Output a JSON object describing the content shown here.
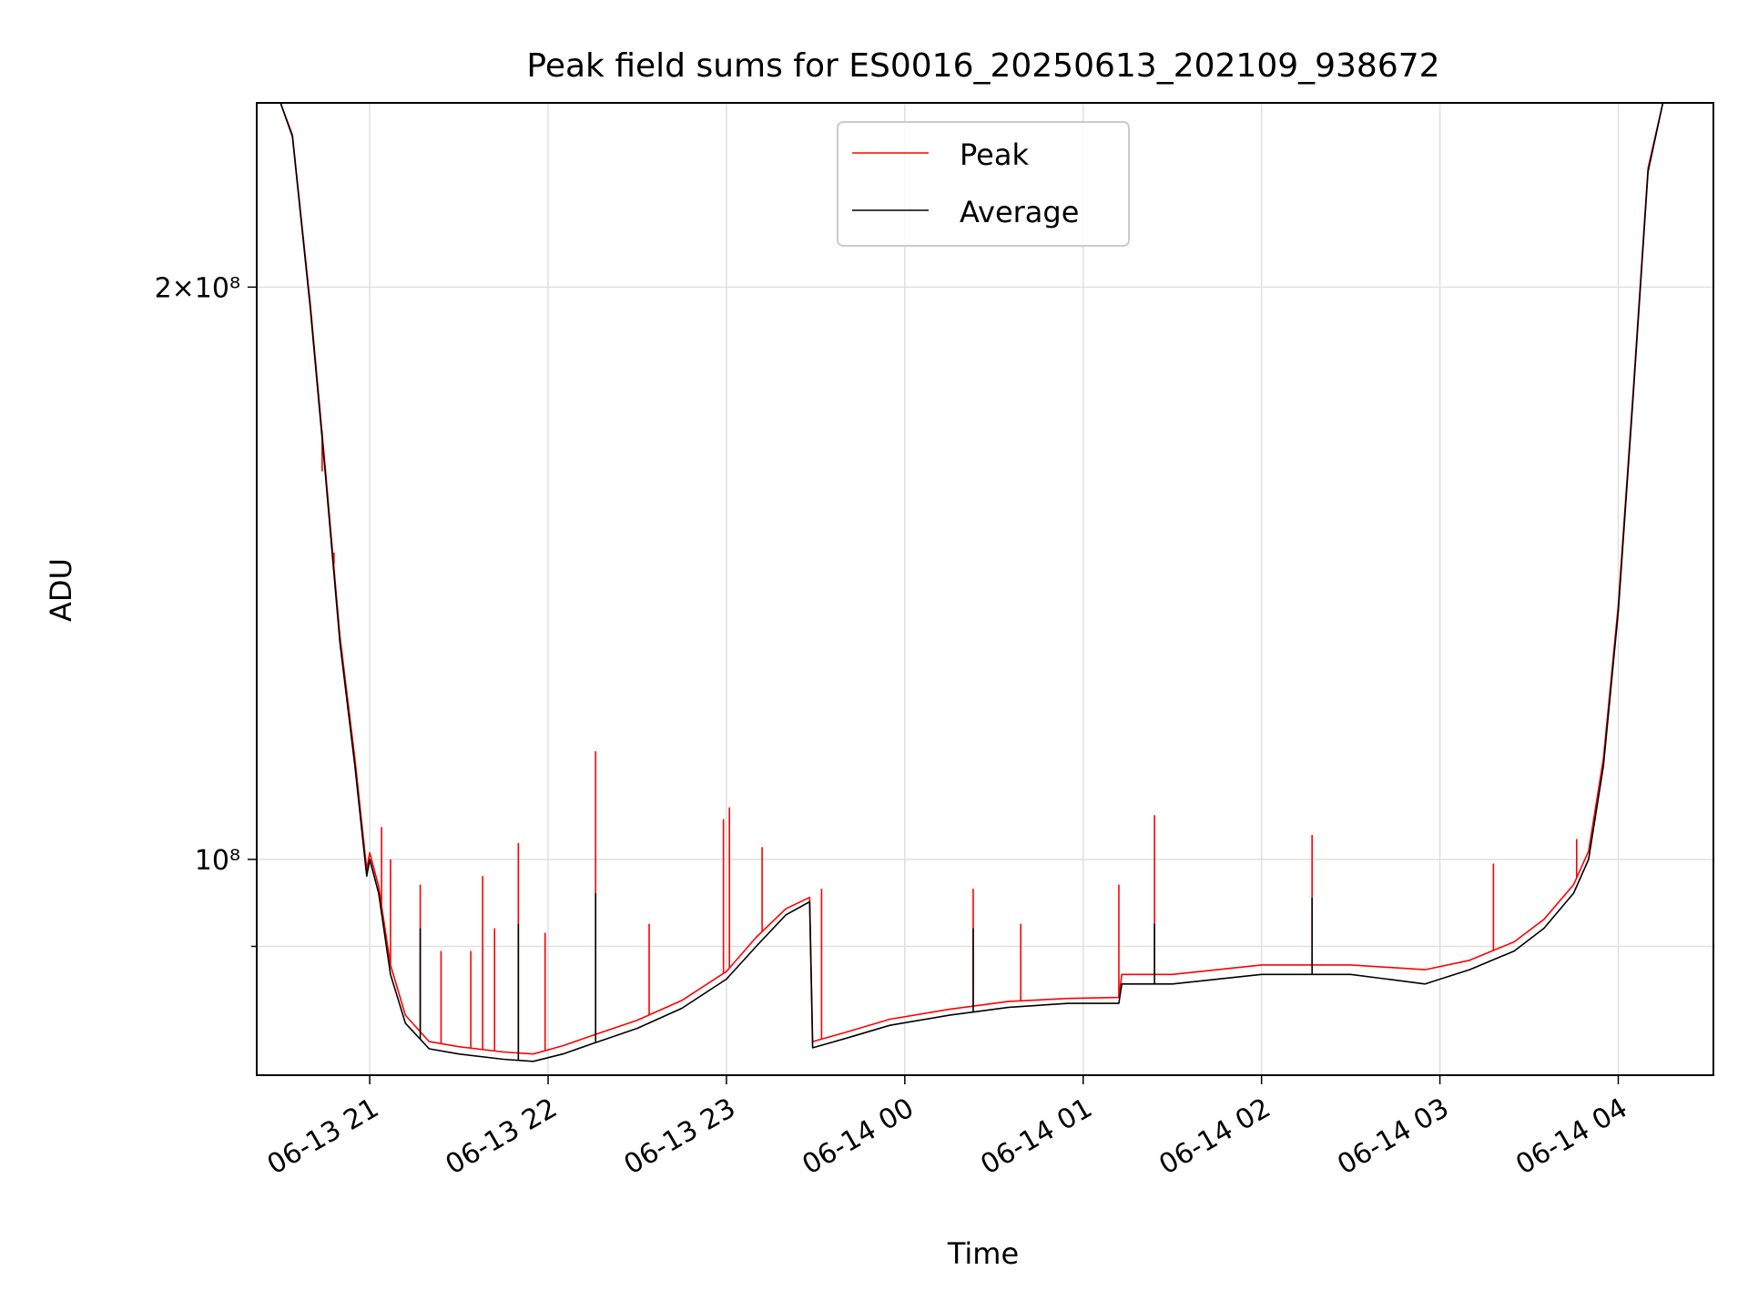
{
  "chart_data": {
    "type": "line",
    "title": "Peak field sums for ES0016_20250613_202109_938672",
    "xlabel": "Time",
    "ylabel": "ADU",
    "yscale": "log",
    "ylim": [
      77000000,
      250000000
    ],
    "xlim": [
      "2025-06-13 20:22",
      "2025-06-14 04:32"
    ],
    "grid": true,
    "legend": "upper center",
    "x_ticks": [
      "06-13 21",
      "06-13 22",
      "06-13 23",
      "06-14 00",
      "06-14 01",
      "06-14 02",
      "06-14 03",
      "06-14 04"
    ],
    "y_ticks": [
      {
        "value": 200000000,
        "label": "2×10⁸",
        "major": true
      },
      {
        "value": 100000000,
        "label": "10⁸",
        "major": true
      },
      {
        "value": 90000000,
        "label": "",
        "major": false
      }
    ],
    "colors": {
      "peak": "#ff0000",
      "average": "#000000"
    },
    "series": [
      {
        "name": "Average",
        "color": "#000000",
        "points": [
          [
            "2025-06-13 20:22",
            250000000
          ],
          [
            "2025-06-13 20:30",
            250000000
          ],
          [
            "2025-06-13 20:34",
            240000000
          ],
          [
            "2025-06-13 20:40",
            195000000
          ],
          [
            "2025-06-13 20:45",
            160000000
          ],
          [
            "2025-06-13 20:50",
            130000000
          ],
          [
            "2025-06-13 20:55",
            112000000
          ],
          [
            "2025-06-13 20:59",
            98000000
          ],
          [
            "2025-06-13 21:00",
            100000000
          ],
          [
            "2025-06-13 21:03",
            96000000
          ],
          [
            "2025-06-13 21:07",
            87000000
          ],
          [
            "2025-06-13 21:12",
            82000000
          ],
          [
            "2025-06-13 21:20",
            79500000
          ],
          [
            "2025-06-13 21:30",
            79000000
          ],
          [
            "2025-06-13 21:45",
            78500000
          ],
          [
            "2025-06-13 21:55",
            78300000
          ],
          [
            "2025-06-13 22:05",
            79000000
          ],
          [
            "2025-06-13 22:15",
            80000000
          ],
          [
            "2025-06-13 22:30",
            81500000
          ],
          [
            "2025-06-13 22:45",
            83500000
          ],
          [
            "2025-06-13 23:00",
            86500000
          ],
          [
            "2025-06-13 23:10",
            90000000
          ],
          [
            "2025-06-13 23:20",
            93500000
          ],
          [
            "2025-06-13 23:28",
            95000000
          ],
          [
            "2025-06-13 23:29",
            79600000
          ],
          [
            "2025-06-13 23:40",
            80500000
          ],
          [
            "2025-06-13 23:55",
            81800000
          ],
          [
            "2025-06-14 00:15",
            82800000
          ],
          [
            "2025-06-14 00:35",
            83600000
          ],
          [
            "2025-06-14 00:55",
            84000000
          ],
          [
            "2025-06-14 01:12",
            84000000
          ],
          [
            "2025-06-14 01:13",
            86000000
          ],
          [
            "2025-06-14 01:30",
            86000000
          ],
          [
            "2025-06-14 02:00",
            87000000
          ],
          [
            "2025-06-14 02:30",
            87000000
          ],
          [
            "2025-06-14 02:55",
            86000000
          ],
          [
            "2025-06-14 03:10",
            87500000
          ],
          [
            "2025-06-14 03:25",
            89500000
          ],
          [
            "2025-06-14 03:35",
            92000000
          ],
          [
            "2025-06-14 03:45",
            96000000
          ],
          [
            "2025-06-14 03:50",
            100000000
          ],
          [
            "2025-06-14 03:55",
            112000000
          ],
          [
            "2025-06-14 04:00",
            135000000
          ],
          [
            "2025-06-14 04:05",
            175000000
          ],
          [
            "2025-06-14 04:10",
            230000000
          ],
          [
            "2025-06-14 04:15",
            250000000
          ],
          [
            "2025-06-14 04:32",
            250000000
          ]
        ]
      },
      {
        "name": "Peak",
        "color": "#ff0000",
        "points": [
          [
            "2025-06-13 20:22",
            250000000
          ],
          [
            "2025-06-13 20:30",
            250000000
          ],
          [
            "2025-06-13 20:34",
            240500000
          ],
          [
            "2025-06-13 20:40",
            196000000
          ],
          [
            "2025-06-13 20:45",
            161000000
          ],
          [
            "2025-06-13 20:50",
            131000000
          ],
          [
            "2025-06-13 20:55",
            113000000
          ],
          [
            "2025-06-13 20:59",
            98800000
          ],
          [
            "2025-06-13 21:00",
            100800000
          ],
          [
            "2025-06-13 21:03",
            96800000
          ],
          [
            "2025-06-13 21:07",
            88000000
          ],
          [
            "2025-06-13 21:12",
            82800000
          ],
          [
            "2025-06-13 21:20",
            80200000
          ],
          [
            "2025-06-13 21:30",
            79700000
          ],
          [
            "2025-06-13 21:45",
            79200000
          ],
          [
            "2025-06-13 21:55",
            79000000
          ],
          [
            "2025-06-13 22:05",
            79800000
          ],
          [
            "2025-06-13 22:15",
            80800000
          ],
          [
            "2025-06-13 22:30",
            82300000
          ],
          [
            "2025-06-13 22:45",
            84300000
          ],
          [
            "2025-06-13 23:00",
            87300000
          ],
          [
            "2025-06-13 23:10",
            91000000
          ],
          [
            "2025-06-13 23:20",
            94200000
          ],
          [
            "2025-06-13 23:28",
            95500000
          ],
          [
            "2025-06-13 23:29",
            80200000
          ],
          [
            "2025-06-13 23:40",
            81100000
          ],
          [
            "2025-06-13 23:55",
            82400000
          ],
          [
            "2025-06-14 00:15",
            83400000
          ],
          [
            "2025-06-14 00:35",
            84200000
          ],
          [
            "2025-06-14 00:55",
            84500000
          ],
          [
            "2025-06-14 01:12",
            84600000
          ],
          [
            "2025-06-14 01:13",
            87000000
          ],
          [
            "2025-06-14 01:30",
            87000000
          ],
          [
            "2025-06-14 02:00",
            88000000
          ],
          [
            "2025-06-14 02:30",
            88000000
          ],
          [
            "2025-06-14 02:55",
            87500000
          ],
          [
            "2025-06-14 03:10",
            88500000
          ],
          [
            "2025-06-14 03:25",
            90500000
          ],
          [
            "2025-06-14 03:35",
            93000000
          ],
          [
            "2025-06-14 03:45",
            97000000
          ],
          [
            "2025-06-14 03:50",
            101000000
          ],
          [
            "2025-06-14 03:55",
            113000000
          ],
          [
            "2025-06-14 04:00",
            136000000
          ],
          [
            "2025-06-14 04:05",
            176000000
          ],
          [
            "2025-06-14 04:10",
            231000000
          ],
          [
            "2025-06-14 04:15",
            250000000
          ],
          [
            "2025-06-14 04:32",
            250000000
          ]
        ]
      }
    ],
    "peak_spikes": [
      [
        "2025-06-13 20:44",
        160000000
      ],
      [
        "2025-06-13 20:48",
        145000000
      ],
      [
        "2025-06-13 20:53",
        120000000
      ],
      [
        "2025-06-13 21:04",
        104000000
      ],
      [
        "2025-06-13 21:07",
        100000000
      ],
      [
        "2025-06-13 21:17",
        97000000
      ],
      [
        "2025-06-13 21:24",
        89500000
      ],
      [
        "2025-06-13 21:34",
        89500000
      ],
      [
        "2025-06-13 21:38",
        98000000
      ],
      [
        "2025-06-13 21:42",
        92000000
      ],
      [
        "2025-06-13 21:50",
        102000000
      ],
      [
        "2025-06-13 21:59",
        91500000
      ],
      [
        "2025-06-13 22:16",
        114000000
      ],
      [
        "2025-06-13 22:34",
        92500000
      ],
      [
        "2025-06-13 22:59",
        105000000
      ],
      [
        "2025-06-13 23:01",
        106500000
      ],
      [
        "2025-06-13 23:12",
        101500000
      ],
      [
        "2025-06-13 23:32",
        96500000
      ],
      [
        "2025-06-14 00:23",
        96500000
      ],
      [
        "2025-06-14 00:39",
        92500000
      ],
      [
        "2025-06-14 01:12",
        97000000
      ],
      [
        "2025-06-14 01:24",
        105500000
      ],
      [
        "2025-06-14 02:17",
        103000000
      ],
      [
        "2025-06-14 03:18",
        99500000
      ],
      [
        "2025-06-14 03:46",
        102500000
      ]
    ],
    "average_spikes": [
      [
        "2025-06-13 21:17",
        92000000
      ],
      [
        "2025-06-13 21:50",
        92500000
      ],
      [
        "2025-06-13 22:16",
        96000000
      ],
      [
        "2025-06-14 00:23",
        92000000
      ],
      [
        "2025-06-14 01:24",
        92500000
      ],
      [
        "2025-06-14 02:17",
        95500000
      ]
    ]
  }
}
